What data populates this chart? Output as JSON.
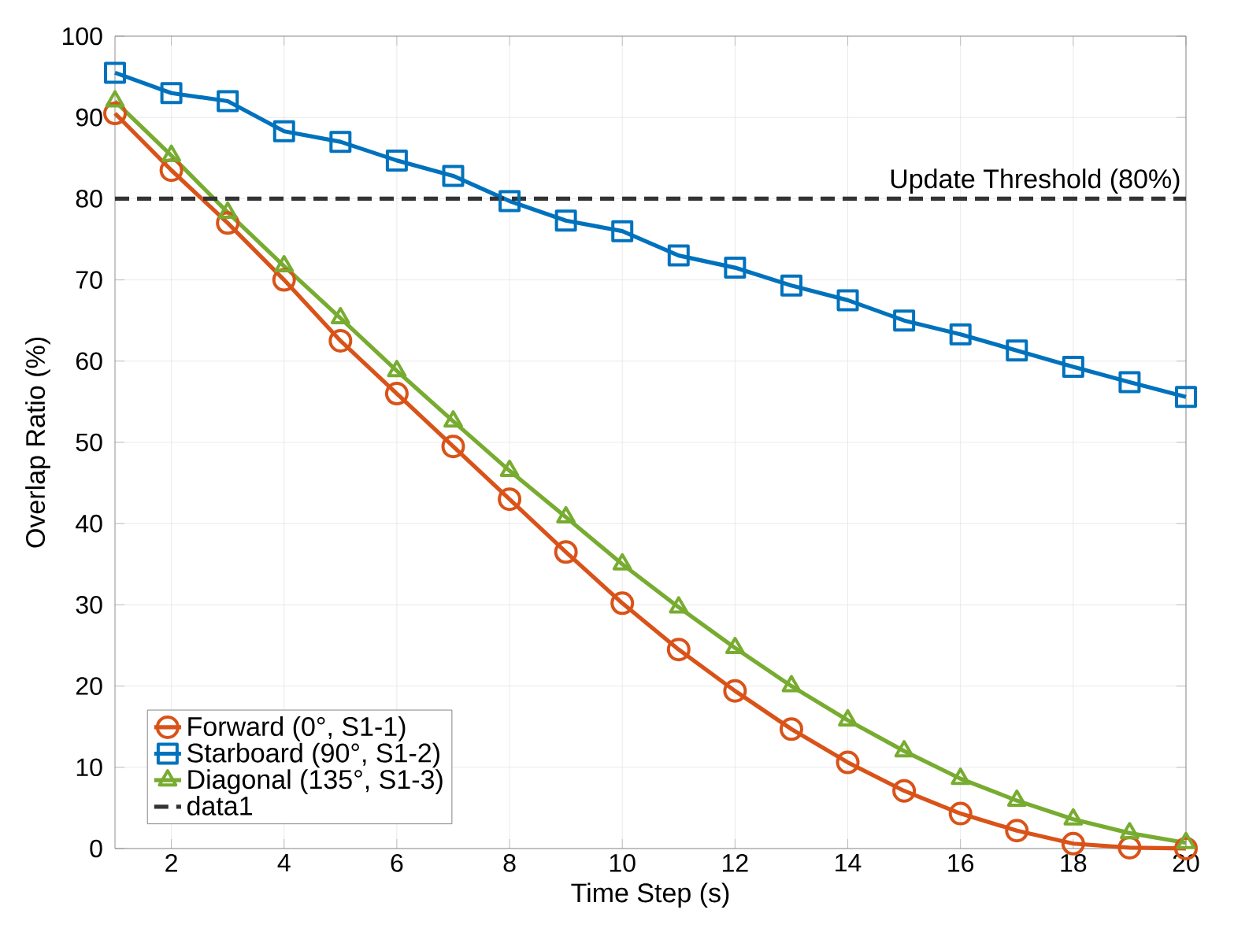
{
  "chart_data": {
    "type": "line",
    "xlabel": "Time Step (s)",
    "ylabel": "Overlap Ratio (%)",
    "x": [
      1,
      2,
      3,
      4,
      5,
      6,
      7,
      8,
      9,
      10,
      11,
      12,
      13,
      14,
      15,
      16,
      17,
      18,
      19,
      20
    ],
    "series": [
      {
        "name": "Forward (0°, S1-1)",
        "color": "#d95319",
        "marker": "circle",
        "values": [
          90.5,
          83.5,
          77,
          70,
          62.5,
          56,
          49.5,
          43,
          36.5,
          30.2,
          24.5,
          19.4,
          14.7,
          10.6,
          7.1,
          4.3,
          2.2,
          0.6,
          0.1,
          0
        ]
      },
      {
        "name": "Starboard (90°, S1-2)",
        "color": "#0072bd",
        "marker": "square",
        "values": [
          95.5,
          93,
          92,
          88.3,
          87,
          84.7,
          82.8,
          79.7,
          77.3,
          76,
          73,
          71.5,
          69.3,
          67.5,
          65,
          63.3,
          61.3,
          59.3,
          57.4,
          55.6
        ]
      },
      {
        "name": "Diagonal (135°, S1-3)",
        "color": "#77ac30",
        "marker": "triangle",
        "values": [
          92,
          85.3,
          78.3,
          71.7,
          65.3,
          58.8,
          52.6,
          46.5,
          40.8,
          35,
          29.7,
          24.7,
          20,
          15.8,
          12,
          8.6,
          5.9,
          3.6,
          1.9,
          0.7
        ]
      },
      {
        "name": "data1",
        "color": "#333333",
        "marker": "none",
        "line_style": "dashed",
        "x": [
          1,
          20
        ],
        "values": [
          80,
          80
        ]
      }
    ],
    "annotations": [
      {
        "text": "Update Threshold (80%)",
        "x": 20,
        "y": 80
      }
    ],
    "xlim": [
      1,
      20
    ],
    "xticks": [
      2,
      4,
      6,
      8,
      10,
      12,
      14,
      16,
      18,
      20
    ],
    "ylim": [
      0,
      100
    ],
    "yticks": [
      0,
      10,
      20,
      30,
      40,
      50,
      60,
      70,
      80,
      90,
      100
    ],
    "grid": true,
    "legend": "bottom left",
    "line_style": "solid"
  }
}
